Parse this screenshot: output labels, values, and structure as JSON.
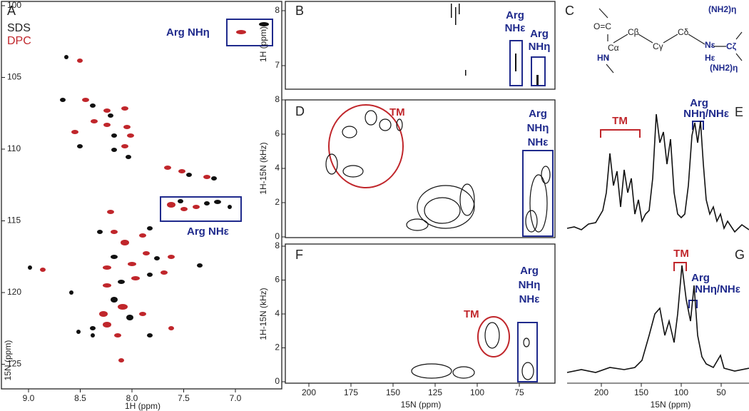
{
  "panels": {
    "A": {
      "label": "A",
      "legend": [
        "SDS",
        "DPC"
      ],
      "annotations": [
        "Arg NHη",
        "Arg NHε"
      ],
      "x_axis": {
        "label": "1H (ppm)",
        "ticks": [
          "9.0",
          "8.5",
          "8.0",
          "7.5",
          "7.0"
        ]
      },
      "y_axis": {
        "label": "15N (ppm)",
        "ticks": [
          100,
          105,
          110,
          115,
          120,
          125
        ]
      }
    },
    "B": {
      "label": "B",
      "annotations": [
        [
          "Arg",
          "NHε"
        ],
        [
          "Arg",
          "NHη"
        ]
      ],
      "y_axis": {
        "label": "1H (ppm)",
        "ticks": [
          8,
          7
        ]
      }
    },
    "C": {
      "label": "C",
      "atoms": [
        "O=C",
        "Cα",
        "HN",
        "Cβ",
        "Cγ",
        "Cδ",
        "Nε",
        "Hε",
        "Cζ",
        "(NH2)η",
        "(NH2)η"
      ]
    },
    "D": {
      "label": "D",
      "annotations": [
        "TM",
        [
          "Arg",
          "NHη",
          "NHε"
        ]
      ],
      "y_axis": {
        "label": "1H-15N (kHz)",
        "ticks": [
          0,
          2,
          4,
          6,
          8
        ]
      }
    },
    "E": {
      "label": "E",
      "annotations": [
        "TM",
        [
          "Arg",
          "NHη/NHε"
        ]
      ]
    },
    "F": {
      "label": "F",
      "annotations": [
        "TM",
        [
          "Arg",
          "NHη",
          "NHε"
        ]
      ],
      "x_axis": {
        "label": "15N (ppm)",
        "ticks": [
          200,
          175,
          150,
          125,
          100,
          75
        ]
      },
      "y_axis": {
        "label": "1H-15N (kHz)",
        "ticks": [
          0,
          2,
          4,
          6,
          8
        ]
      }
    },
    "G": {
      "label": "G",
      "annotations": [
        "TM",
        [
          "Arg",
          "NHη/NHε"
        ]
      ],
      "x_axis": {
        "label": "15N (ppm)",
        "ticks": [
          200,
          150,
          100,
          50
        ]
      }
    }
  }
}
